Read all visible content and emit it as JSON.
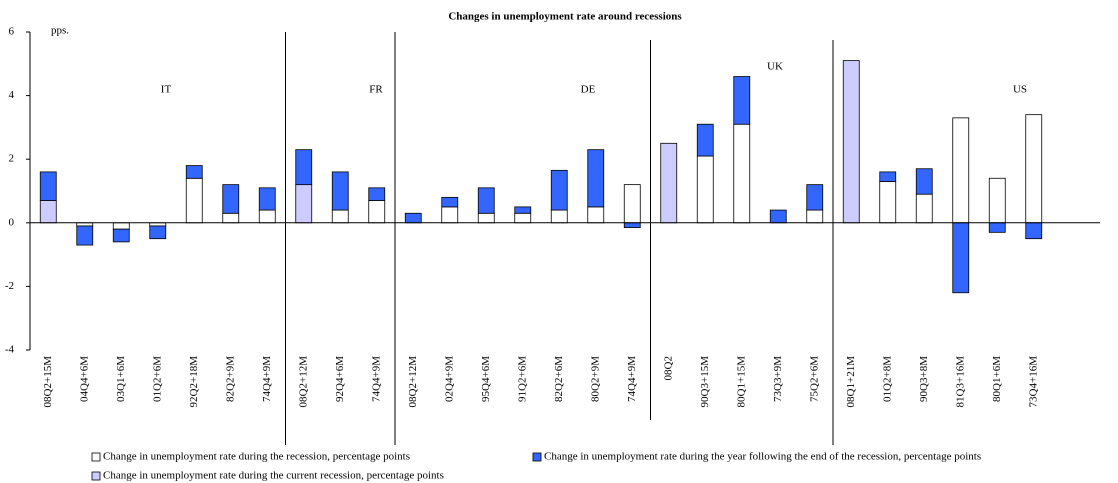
{
  "chart_data": {
    "type": "stacked_bar",
    "title": "Changes in unemployment rate around recessions",
    "y_unit": "pps.",
    "groups": [
      "IT",
      "FR",
      "DE",
      "UK",
      "US"
    ],
    "categories": [
      "08Q2+15M",
      "04Q4+6M",
      "03Q1+6M",
      "01Q2+6M",
      "92Q2+18M",
      "82Q2+9M",
      "74Q4+9M",
      "08Q2+12M",
      "92Q4+6M",
      "74Q4+9M",
      "08Q2+12M",
      "02Q4+9M",
      "95Q4+6M",
      "91Q2+6M",
      "82Q2+6M",
      "80Q2+9M",
      "74Q4+9M",
      "08Q2",
      "90Q3+15M",
      "80Q1+15M",
      "73Q3+9M",
      "75Q2+6M",
      "08Q1+21M",
      "01Q2+8M",
      "90Q3+8M",
      "81Q3+16M",
      "80Q1+6M",
      "73Q4+16M"
    ],
    "series": [
      {
        "name": "Change in unemployment rate during the recession, percentage points",
        "color": "#ffffff",
        "values": [
          null,
          -0.1,
          -0.2,
          -0.1,
          1.4,
          0.3,
          0.4,
          null,
          0.4,
          0.7,
          null,
          0.5,
          0.3,
          0.3,
          0.4,
          0.5,
          1.2,
          null,
          2.1,
          3.1,
          0,
          0.4,
          null,
          1.3,
          0.9,
          3.3,
          1.4,
          3.4
        ]
      },
      {
        "name": "Change in unemployment rate during the current recession, percentage points",
        "color": "#ccccff",
        "values": [
          0.7,
          null,
          null,
          null,
          null,
          null,
          null,
          1.2,
          null,
          null,
          0,
          null,
          null,
          null,
          null,
          null,
          null,
          2.5,
          null,
          null,
          null,
          null,
          5.1,
          null,
          null,
          null,
          null,
          null
        ]
      },
      {
        "name": "Change in unemployment rate during the year following the end of the recession, percentage points",
        "color": "#3366ff",
        "values": [
          0.9,
          -0.6,
          -0.4,
          -0.4,
          0.4,
          0.9,
          0.7,
          1.1,
          1.2,
          0.4,
          0.3,
          0.3,
          0.8,
          0.2,
          1.25,
          1.8,
          -0.15,
          null,
          1.0,
          1.5,
          0.4,
          0.8,
          null,
          0.3,
          0.8,
          -2.2,
          -0.3,
          -0.5
        ]
      }
    ],
    "ylim": [
      -4,
      6
    ],
    "yticks": [
      -4,
      -2,
      0,
      2,
      4,
      6
    ]
  }
}
